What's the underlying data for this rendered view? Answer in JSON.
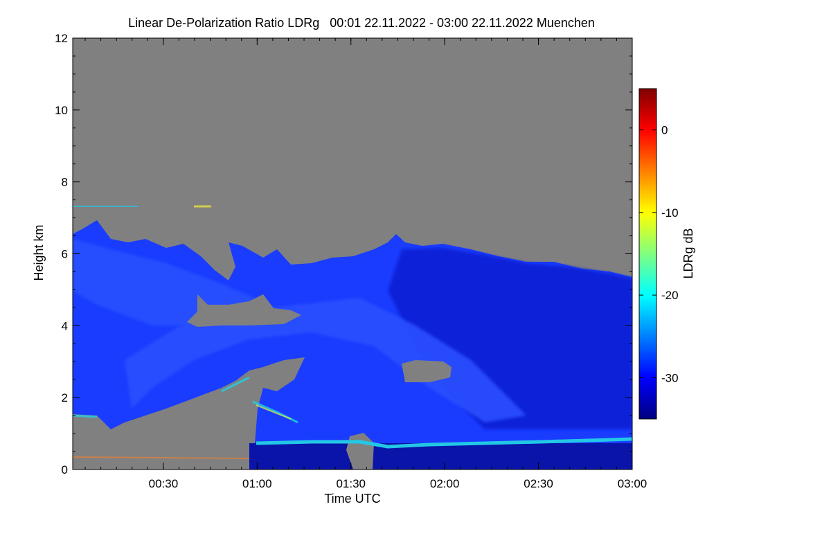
{
  "chart_data": {
    "type": "heatmap",
    "title": "Linear De-Polarization Ratio LDRg   00:01 22.11.2022 - 03:00 22.11.2022 Muenchen",
    "xlabel": "Time UTC",
    "ylabel": "Height km",
    "x_ticks": [
      "00:30",
      "01:00",
      "01:30",
      "02:00",
      "02:30",
      "03:00"
    ],
    "x_tick_hours": [
      0.5,
      1.0,
      1.5,
      2.0,
      2.5,
      3.0
    ],
    "xlim_hours": [
      0.0167,
      3.0
    ],
    "y_ticks": [
      0,
      2,
      4,
      6,
      8,
      10,
      12
    ],
    "ylim": [
      0,
      12
    ],
    "colorbar": {
      "label": "LDRg dB",
      "range": [
        -35,
        5
      ],
      "ticks": [
        0,
        -10,
        -20,
        -30
      ]
    },
    "colors": {
      "no_signal": "#808080",
      "cloud_base": "#1a3cff",
      "surface_layer": "#22c8e6",
      "lowest_layer": "#0a14a8"
    }
  }
}
